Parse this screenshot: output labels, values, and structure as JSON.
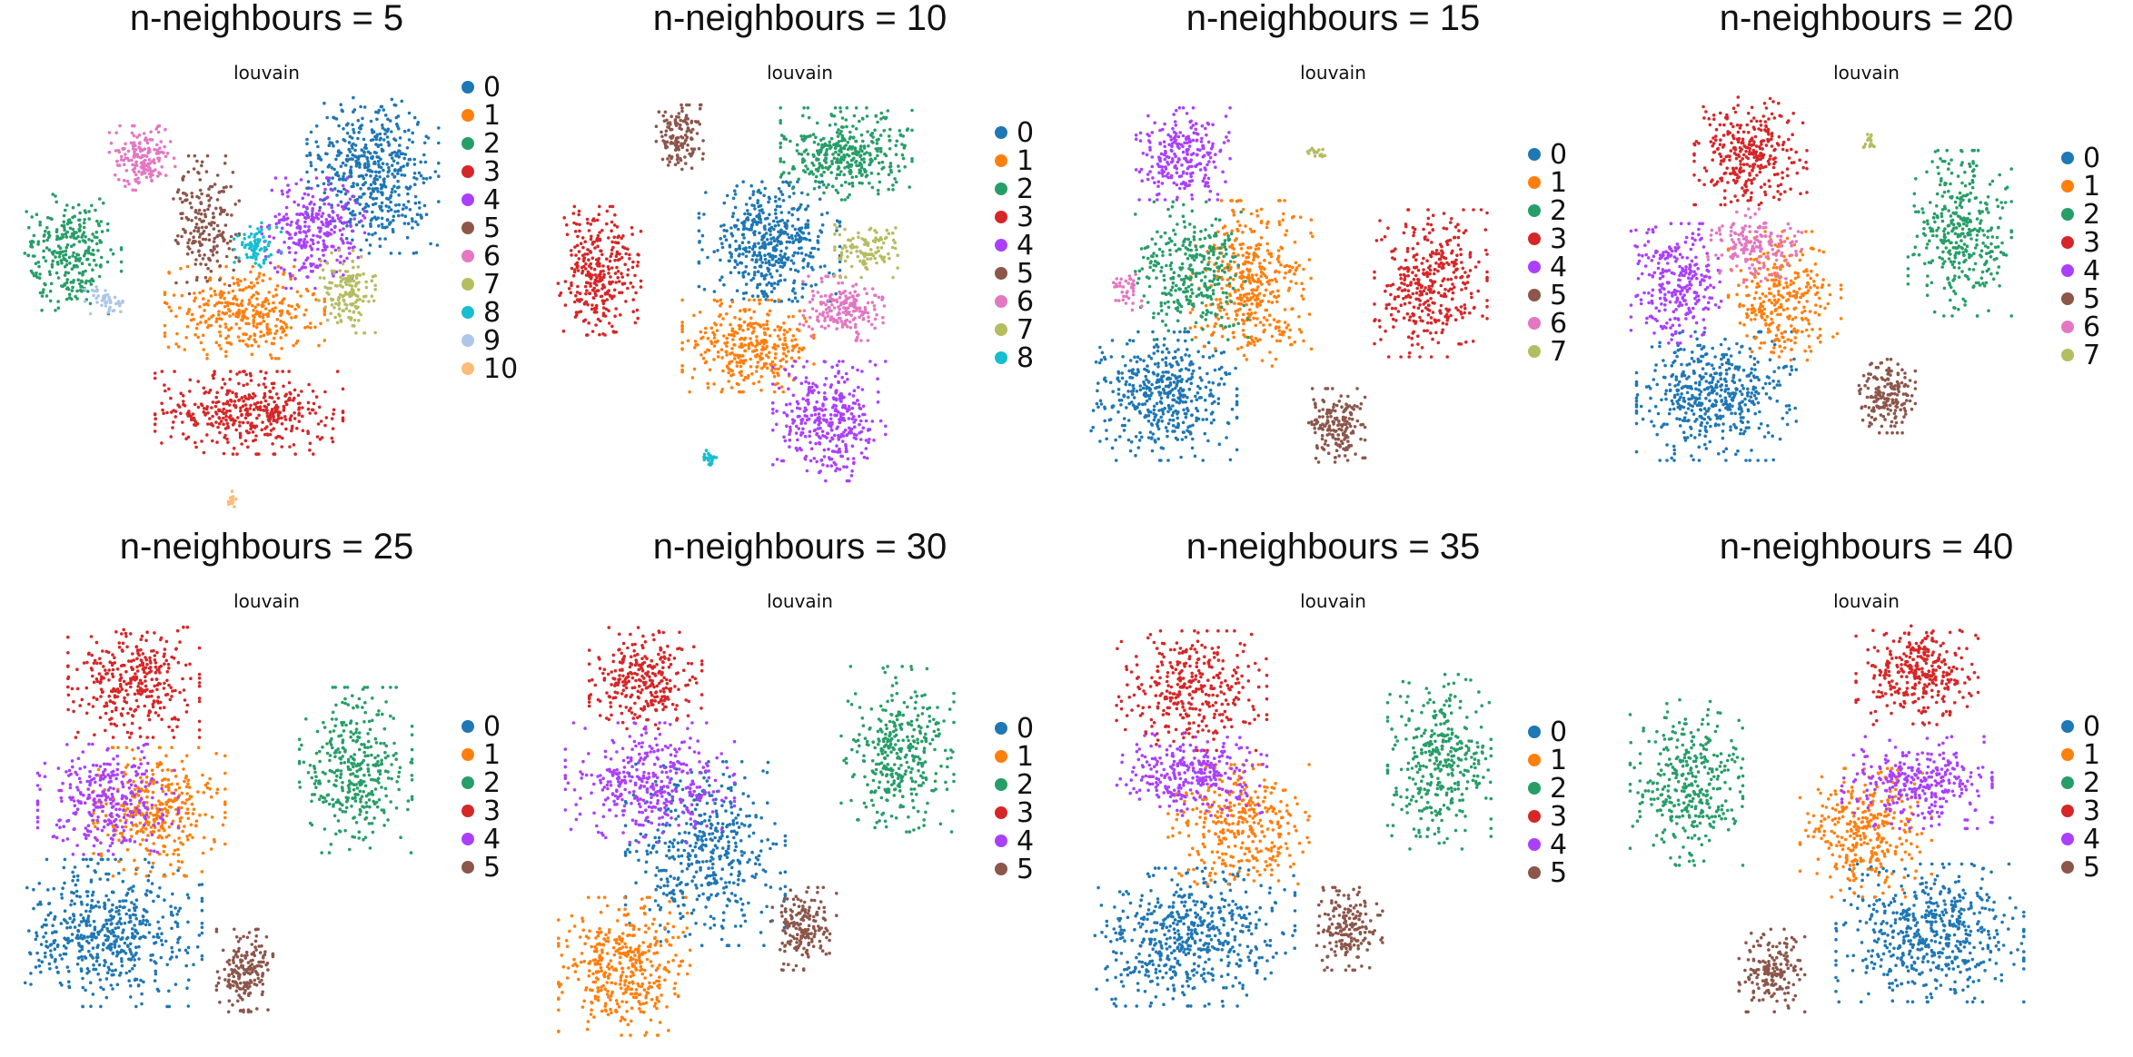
{
  "chart_data": [
    {
      "type": "scatter",
      "title": "n-neighbours = 5",
      "subtitle": "louvain",
      "legend": [
        "0",
        "1",
        "2",
        "3",
        "4",
        "5",
        "6",
        "7",
        "8",
        "9",
        "10"
      ],
      "clusters": [
        {
          "label": "0",
          "cx": 0.82,
          "cy": 0.18,
          "rx": 0.14,
          "ry": 0.18,
          "n": 520
        },
        {
          "label": "1",
          "cx": 0.52,
          "cy": 0.52,
          "rx": 0.17,
          "ry": 0.1,
          "n": 340
        },
        {
          "label": "2",
          "cx": 0.11,
          "cy": 0.38,
          "rx": 0.11,
          "ry": 0.13,
          "n": 300
        },
        {
          "label": "3",
          "cx": 0.53,
          "cy": 0.76,
          "rx": 0.2,
          "ry": 0.09,
          "n": 420
        },
        {
          "label": "4",
          "cx": 0.68,
          "cy": 0.33,
          "rx": 0.11,
          "ry": 0.12,
          "n": 280
        },
        {
          "label": "5",
          "cx": 0.43,
          "cy": 0.31,
          "rx": 0.07,
          "ry": 0.15,
          "n": 200
        },
        {
          "label": "6",
          "cx": 0.28,
          "cy": 0.15,
          "rx": 0.07,
          "ry": 0.07,
          "n": 170
        },
        {
          "label": "7",
          "cx": 0.76,
          "cy": 0.47,
          "rx": 0.06,
          "ry": 0.09,
          "n": 150
        },
        {
          "label": "8",
          "cx": 0.55,
          "cy": 0.36,
          "rx": 0.05,
          "ry": 0.05,
          "n": 80
        },
        {
          "label": "9",
          "cx": 0.19,
          "cy": 0.49,
          "rx": 0.04,
          "ry": 0.03,
          "n": 45
        },
        {
          "label": "10",
          "cx": 0.49,
          "cy": 0.97,
          "rx": 0.012,
          "ry": 0.02,
          "n": 14
        }
      ]
    },
    {
      "type": "scatter",
      "title": "n-neighbours = 10",
      "subtitle": "louvain",
      "legend": [
        "0",
        "1",
        "2",
        "3",
        "4",
        "5",
        "6",
        "7",
        "8"
      ],
      "clusters": [
        {
          "label": "0",
          "cx": 0.5,
          "cy": 0.35,
          "rx": 0.15,
          "ry": 0.13,
          "n": 480
        },
        {
          "label": "1",
          "cx": 0.45,
          "cy": 0.6,
          "rx": 0.14,
          "ry": 0.1,
          "n": 330
        },
        {
          "label": "2",
          "cx": 0.68,
          "cy": 0.14,
          "rx": 0.14,
          "ry": 0.1,
          "n": 380
        },
        {
          "label": "3",
          "cx": 0.1,
          "cy": 0.42,
          "rx": 0.09,
          "ry": 0.14,
          "n": 320
        },
        {
          "label": "4",
          "cx": 0.64,
          "cy": 0.78,
          "rx": 0.12,
          "ry": 0.13,
          "n": 360
        },
        {
          "label": "5",
          "cx": 0.29,
          "cy": 0.1,
          "rx": 0.05,
          "ry": 0.07,
          "n": 140
        },
        {
          "label": "6",
          "cx": 0.67,
          "cy": 0.51,
          "rx": 0.09,
          "ry": 0.07,
          "n": 190
        },
        {
          "label": "7",
          "cx": 0.73,
          "cy": 0.37,
          "rx": 0.07,
          "ry": 0.06,
          "n": 110
        },
        {
          "label": "8",
          "cx": 0.36,
          "cy": 0.87,
          "rx": 0.02,
          "ry": 0.02,
          "n": 26
        }
      ]
    },
    {
      "type": "scatter",
      "title": "n-neighbours = 15",
      "subtitle": "louvain",
      "legend": [
        "0",
        "1",
        "2",
        "3",
        "4",
        "5",
        "6",
        "7"
      ],
      "clusters": [
        {
          "label": "0",
          "cx": 0.17,
          "cy": 0.72,
          "rx": 0.16,
          "ry": 0.14,
          "n": 480
        },
        {
          "label": "1",
          "cx": 0.38,
          "cy": 0.45,
          "rx": 0.13,
          "ry": 0.18,
          "n": 420
        },
        {
          "label": "2",
          "cx": 0.24,
          "cy": 0.42,
          "rx": 0.12,
          "ry": 0.15,
          "n": 320
        },
        {
          "label": "3",
          "cx": 0.8,
          "cy": 0.45,
          "rx": 0.12,
          "ry": 0.16,
          "n": 380
        },
        {
          "label": "4",
          "cx": 0.22,
          "cy": 0.14,
          "rx": 0.1,
          "ry": 0.1,
          "n": 250
        },
        {
          "label": "5",
          "cx": 0.58,
          "cy": 0.79,
          "rx": 0.06,
          "ry": 0.08,
          "n": 180
        },
        {
          "label": "6",
          "cx": 0.09,
          "cy": 0.47,
          "rx": 0.03,
          "ry": 0.04,
          "n": 40
        },
        {
          "label": "7",
          "cx": 0.53,
          "cy": 0.14,
          "rx": 0.02,
          "ry": 0.015,
          "n": 18
        }
      ]
    },
    {
      "type": "scatter",
      "title": "n-neighbours = 20",
      "subtitle": "louvain",
      "legend": [
        "0",
        "1",
        "2",
        "3",
        "4",
        "5",
        "6",
        "7"
      ],
      "clusters": [
        {
          "label": "0",
          "cx": 0.22,
          "cy": 0.72,
          "rx": 0.17,
          "ry": 0.14,
          "n": 500
        },
        {
          "label": "1",
          "cx": 0.38,
          "cy": 0.48,
          "rx": 0.12,
          "ry": 0.14,
          "n": 300
        },
        {
          "label": "2",
          "cx": 0.79,
          "cy": 0.33,
          "rx": 0.11,
          "ry": 0.18,
          "n": 360
        },
        {
          "label": "3",
          "cx": 0.3,
          "cy": 0.13,
          "rx": 0.12,
          "ry": 0.12,
          "n": 330
        },
        {
          "label": "4",
          "cx": 0.13,
          "cy": 0.45,
          "rx": 0.1,
          "ry": 0.13,
          "n": 280
        },
        {
          "label": "5",
          "cx": 0.62,
          "cy": 0.72,
          "rx": 0.06,
          "ry": 0.08,
          "n": 180
        },
        {
          "label": "6",
          "cx": 0.31,
          "cy": 0.36,
          "rx": 0.1,
          "ry": 0.08,
          "n": 180
        },
        {
          "label": "7",
          "cx": 0.58,
          "cy": 0.11,
          "rx": 0.02,
          "ry": 0.015,
          "n": 18
        }
      ]
    },
    {
      "type": "scatter",
      "title": "n-neighbours = 25",
      "subtitle": "louvain",
      "legend": [
        "0",
        "1",
        "2",
        "3",
        "4",
        "5"
      ],
      "clusters": [
        {
          "label": "0",
          "cx": 0.2,
          "cy": 0.74,
          "rx": 0.2,
          "ry": 0.16,
          "n": 560
        },
        {
          "label": "1",
          "cx": 0.32,
          "cy": 0.45,
          "rx": 0.14,
          "ry": 0.14,
          "n": 340
        },
        {
          "label": "2",
          "cx": 0.78,
          "cy": 0.35,
          "rx": 0.12,
          "ry": 0.18,
          "n": 360
        },
        {
          "label": "3",
          "cx": 0.26,
          "cy": 0.14,
          "rx": 0.14,
          "ry": 0.12,
          "n": 340
        },
        {
          "label": "4",
          "cx": 0.2,
          "cy": 0.42,
          "rx": 0.15,
          "ry": 0.12,
          "n": 320
        },
        {
          "label": "5",
          "cx": 0.52,
          "cy": 0.83,
          "rx": 0.06,
          "ry": 0.09,
          "n": 180
        }
      ]
    },
    {
      "type": "scatter",
      "title": "n-neighbours = 30",
      "subtitle": "louvain",
      "legend": [
        "0",
        "1",
        "2",
        "3",
        "4",
        "5"
      ],
      "clusters": [
        {
          "label": "0",
          "cx": 0.35,
          "cy": 0.55,
          "rx": 0.17,
          "ry": 0.2,
          "n": 480
        },
        {
          "label": "1",
          "cx": 0.16,
          "cy": 0.82,
          "rx": 0.14,
          "ry": 0.15,
          "n": 420
        },
        {
          "label": "2",
          "cx": 0.8,
          "cy": 0.3,
          "rx": 0.12,
          "ry": 0.18,
          "n": 360
        },
        {
          "label": "3",
          "cx": 0.21,
          "cy": 0.13,
          "rx": 0.12,
          "ry": 0.11,
          "n": 300
        },
        {
          "label": "4",
          "cx": 0.22,
          "cy": 0.38,
          "rx": 0.18,
          "ry": 0.13,
          "n": 380
        },
        {
          "label": "5",
          "cx": 0.58,
          "cy": 0.73,
          "rx": 0.07,
          "ry": 0.09,
          "n": 180
        }
      ]
    },
    {
      "type": "scatter",
      "title": "n-neighbours = 35",
      "subtitle": "louvain",
      "legend": [
        "0",
        "1",
        "2",
        "3",
        "4",
        "5"
      ],
      "clusters": [
        {
          "label": "0",
          "cx": 0.24,
          "cy": 0.75,
          "rx": 0.22,
          "ry": 0.15,
          "n": 560
        },
        {
          "label": "1",
          "cx": 0.35,
          "cy": 0.48,
          "rx": 0.15,
          "ry": 0.13,
          "n": 340
        },
        {
          "label": "2",
          "cx": 0.82,
          "cy": 0.33,
          "rx": 0.11,
          "ry": 0.19,
          "n": 360
        },
        {
          "label": "3",
          "cx": 0.24,
          "cy": 0.16,
          "rx": 0.16,
          "ry": 0.13,
          "n": 340
        },
        {
          "label": "4",
          "cx": 0.24,
          "cy": 0.36,
          "rx": 0.16,
          "ry": 0.09,
          "n": 300
        },
        {
          "label": "5",
          "cx": 0.61,
          "cy": 0.73,
          "rx": 0.07,
          "ry": 0.09,
          "n": 180
        }
      ]
    },
    {
      "type": "scatter",
      "title": "n-neighbours = 40",
      "subtitle": "louvain",
      "legend": [
        "0",
        "1",
        "2",
        "3",
        "4",
        "5"
      ],
      "clusters": [
        {
          "label": "0",
          "cx": 0.72,
          "cy": 0.74,
          "rx": 0.2,
          "ry": 0.15,
          "n": 560
        },
        {
          "label": "1",
          "cx": 0.57,
          "cy": 0.5,
          "rx": 0.14,
          "ry": 0.14,
          "n": 340
        },
        {
          "label": "2",
          "cx": 0.15,
          "cy": 0.38,
          "rx": 0.12,
          "ry": 0.18,
          "n": 360
        },
        {
          "label": "3",
          "cx": 0.69,
          "cy": 0.12,
          "rx": 0.13,
          "ry": 0.11,
          "n": 330
        },
        {
          "label": "4",
          "cx": 0.69,
          "cy": 0.38,
          "rx": 0.16,
          "ry": 0.1,
          "n": 320
        },
        {
          "label": "5",
          "cx": 0.35,
          "cy": 0.83,
          "rx": 0.07,
          "ry": 0.09,
          "n": 180
        }
      ]
    }
  ],
  "palette": [
    "#1f77b4",
    "#ff7f0e",
    "#279e68",
    "#d62728",
    "#aa40fc",
    "#8c564b",
    "#e377c2",
    "#b5bd61",
    "#17becf",
    "#aec7e8",
    "#ffbb78"
  ]
}
